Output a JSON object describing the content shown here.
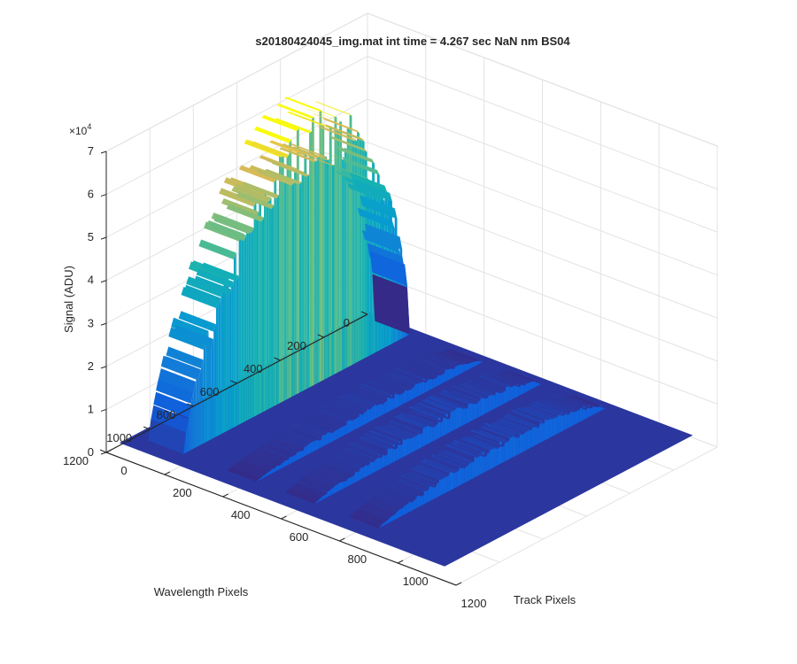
{
  "chart_data": {
    "type": "surface3d",
    "title": "s20180424045_img.mat int time = 4.267 sec  NaN nm BS04",
    "xlabel": "Track Pixels",
    "ylabel": "Wavelength Pixels",
    "zlabel": "Signal (ADU)",
    "z_exponent_label": "×10",
    "z_exponent_power": "4",
    "xlim": [
      0,
      1200
    ],
    "ylim": [
      0,
      1200
    ],
    "zlim": [
      0,
      70000
    ],
    "x_ticks": [
      0,
      200,
      400,
      600,
      800,
      1000,
      1200
    ],
    "y_ticks": [
      0,
      200,
      400,
      600,
      800,
      1000,
      1200
    ],
    "z_ticks": [
      0,
      1,
      2,
      3,
      4,
      5,
      6,
      7
    ],
    "grid": true,
    "colormap": "parula",
    "tracks": [
      {
        "center": 100,
        "width": 120,
        "peak": 58000
      },
      {
        "center": 360,
        "width": 100,
        "peak": 3000
      },
      {
        "center": 560,
        "width": 100,
        "peak": 4000
      },
      {
        "center": 780,
        "width": 100,
        "peak": 4500
      }
    ],
    "wavelength_signal_extent": [
      20,
      1060
    ]
  }
}
